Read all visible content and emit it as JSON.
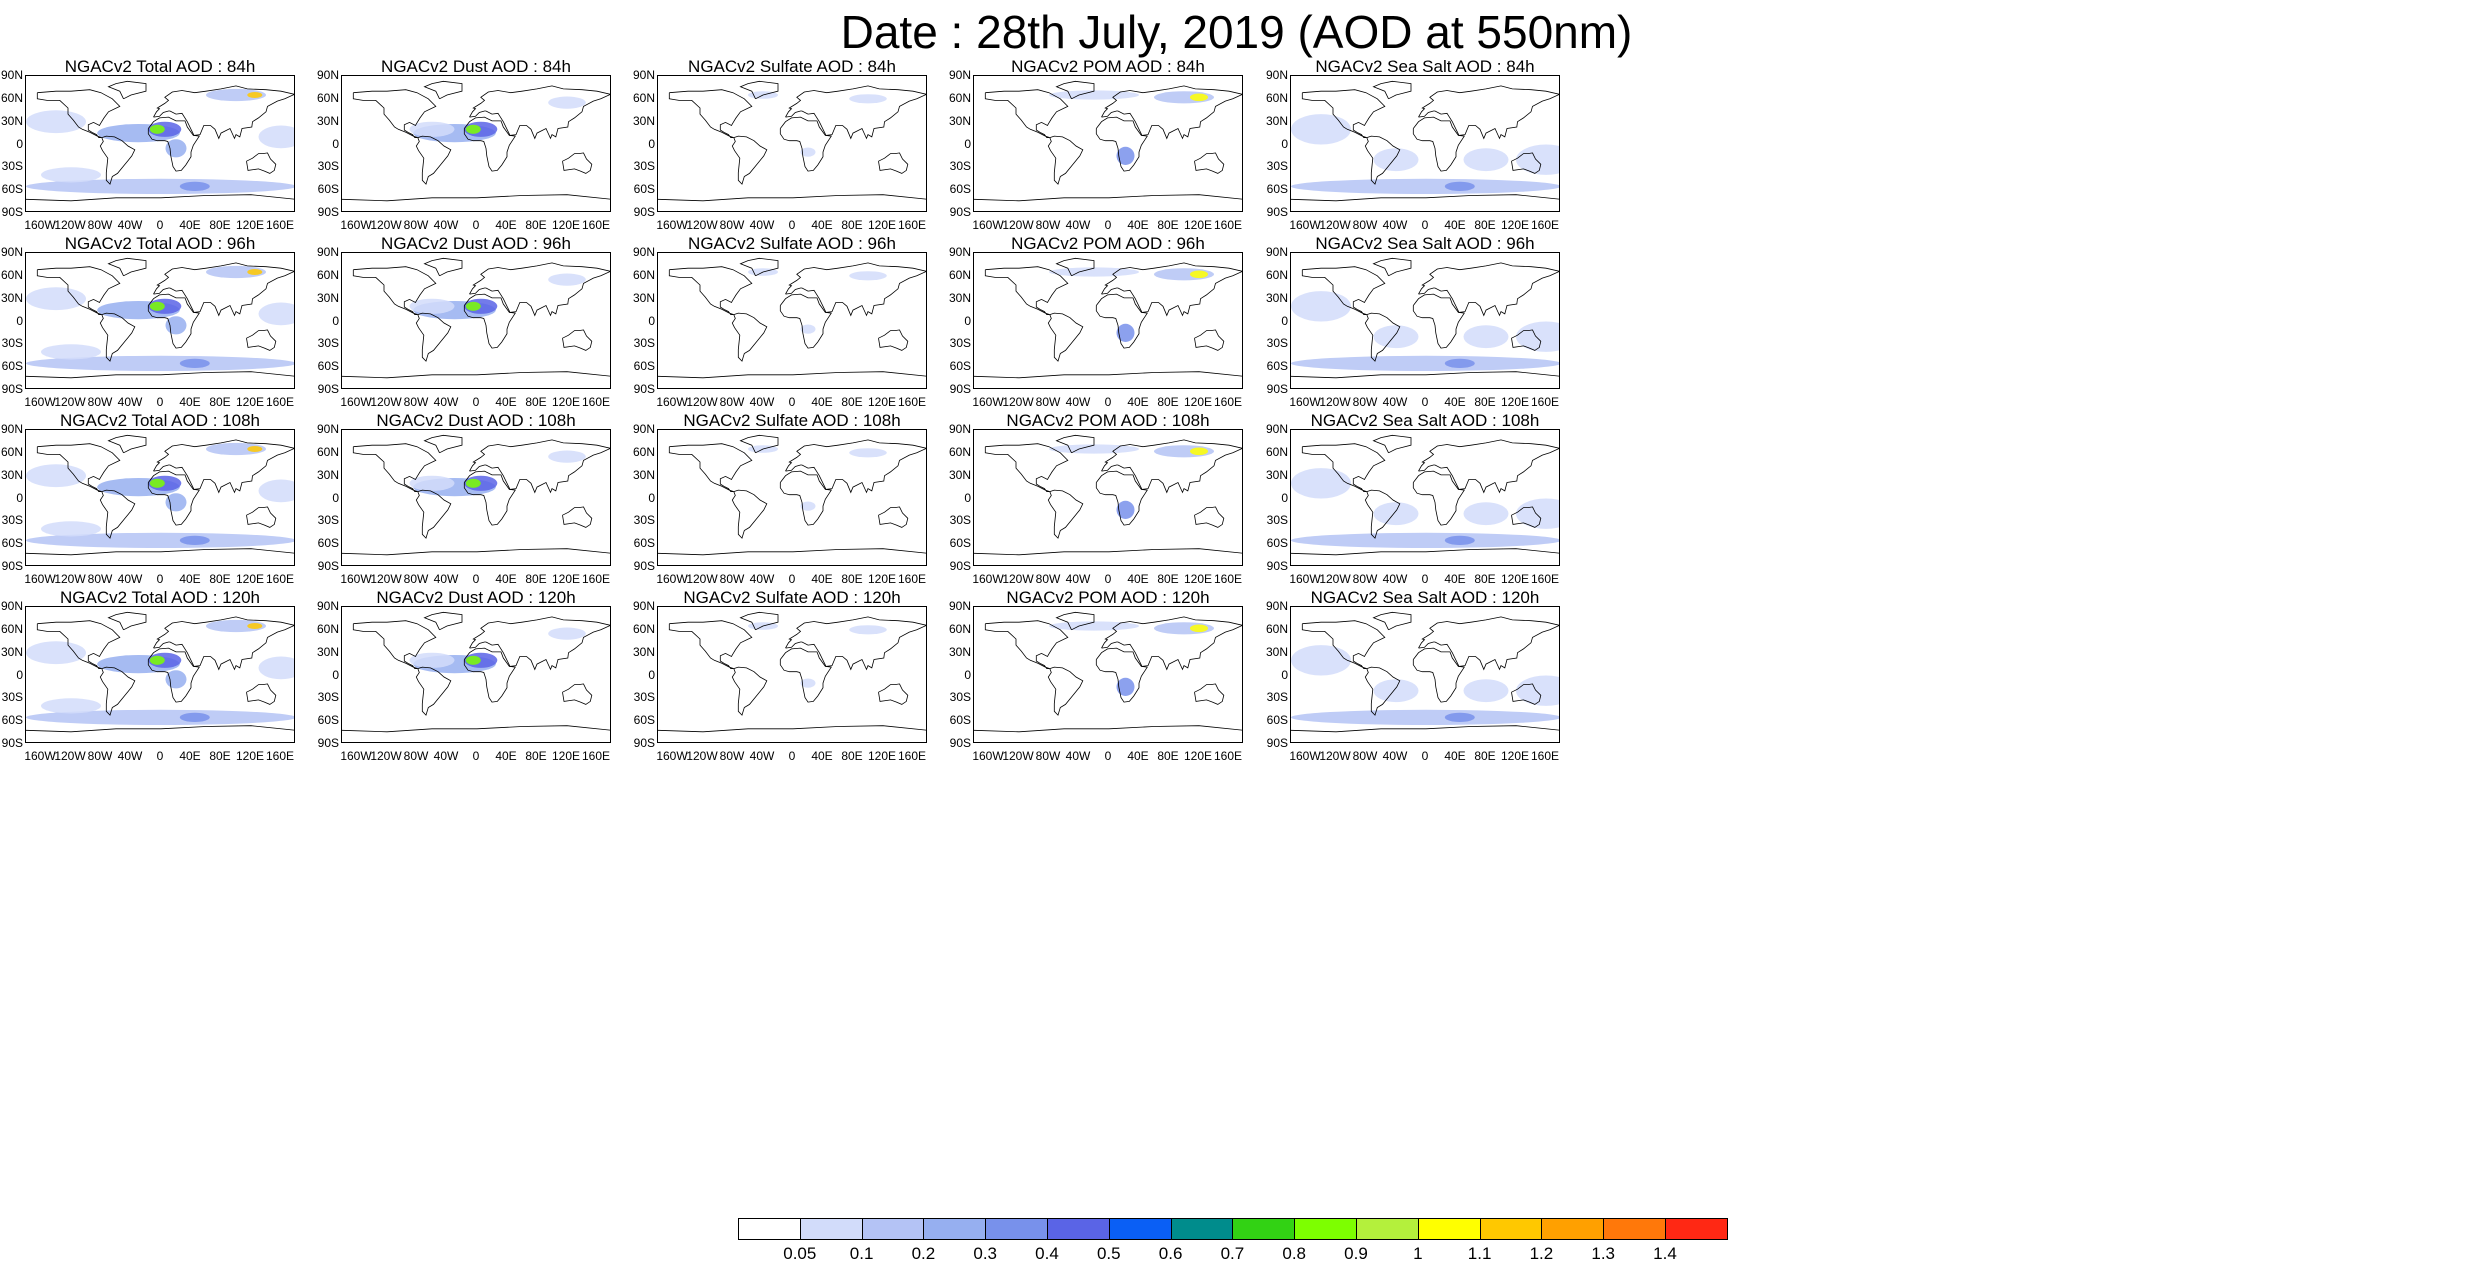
{
  "title": "Date : 28th July, 2019 (AOD at 550nm)",
  "lat_ticks": [
    "90N",
    "60N",
    "30N",
    "0",
    "30S",
    "60S",
    "90S"
  ],
  "lon_ticks": [
    "160W",
    "120W",
    "80W",
    "40W",
    "0",
    "40E",
    "80E",
    "120E",
    "160E"
  ],
  "rows": [
    {
      "forecast_hour": "84h",
      "panels": [
        {
          "title": "NGACv2 Total AOD : 84h",
          "species": "total"
        },
        {
          "title": "NGACv2 Dust AOD : 84h",
          "species": "dust"
        },
        {
          "title": "NGACv2 Sulfate AOD : 84h",
          "species": "sulfate"
        },
        {
          "title": "NGACv2 POM AOD : 84h",
          "species": "pom"
        },
        {
          "title": "NGACv2 Sea Salt AOD : 84h",
          "species": "seasalt"
        }
      ]
    },
    {
      "forecast_hour": "96h",
      "panels": [
        {
          "title": "NGACv2 Total AOD : 96h",
          "species": "total"
        },
        {
          "title": "NGACv2 Dust AOD : 96h",
          "species": "dust"
        },
        {
          "title": "NGACv2 Sulfate AOD : 96h",
          "species": "sulfate"
        },
        {
          "title": "NGACv2 POM AOD : 96h",
          "species": "pom"
        },
        {
          "title": "NGACv2 Sea Salt AOD : 96h",
          "species": "seasalt"
        }
      ]
    },
    {
      "forecast_hour": "108h",
      "panels": [
        {
          "title": "NGACv2 Total AOD : 108h",
          "species": "total"
        },
        {
          "title": "NGACv2 Dust AOD : 108h",
          "species": "dust"
        },
        {
          "title": "NGACv2 Sulfate AOD : 108h",
          "species": "sulfate"
        },
        {
          "title": "NGACv2 POM AOD : 108h",
          "species": "pom"
        },
        {
          "title": "NGACv2 Sea Salt AOD : 108h",
          "species": "seasalt"
        }
      ]
    },
    {
      "forecast_hour": "120h",
      "panels": [
        {
          "title": "NGACv2 Total AOD : 120h",
          "species": "total"
        },
        {
          "title": "NGACv2 Dust AOD : 120h",
          "species": "dust"
        },
        {
          "title": "NGACv2 Sulfate AOD : 120h",
          "species": "sulfate"
        },
        {
          "title": "NGACv2 POM AOD : 120h",
          "species": "pom"
        },
        {
          "title": "NGACv2 Sea Salt  AOD : 120h",
          "species": "seasalt"
        }
      ]
    }
  ],
  "colorbar": {
    "labels": [
      "0.05",
      "0.1",
      "0.2",
      "0.3",
      "0.4",
      "0.5",
      "0.6",
      "0.7",
      "0.8",
      "0.9",
      "1",
      "1.1",
      "1.2",
      "1.3",
      "1.4"
    ],
    "colors": [
      "#ffffff",
      "#d2dcfa",
      "#b4c3f5",
      "#96aff0",
      "#7891eb",
      "#5a64e6",
      "#0a5ff5",
      "#008c8c",
      "#32d214",
      "#7dff00",
      "#b4f03c",
      "#ffff00",
      "#ffc800",
      "#ffa000",
      "#ff780a",
      "#ff2814"
    ]
  }
}
